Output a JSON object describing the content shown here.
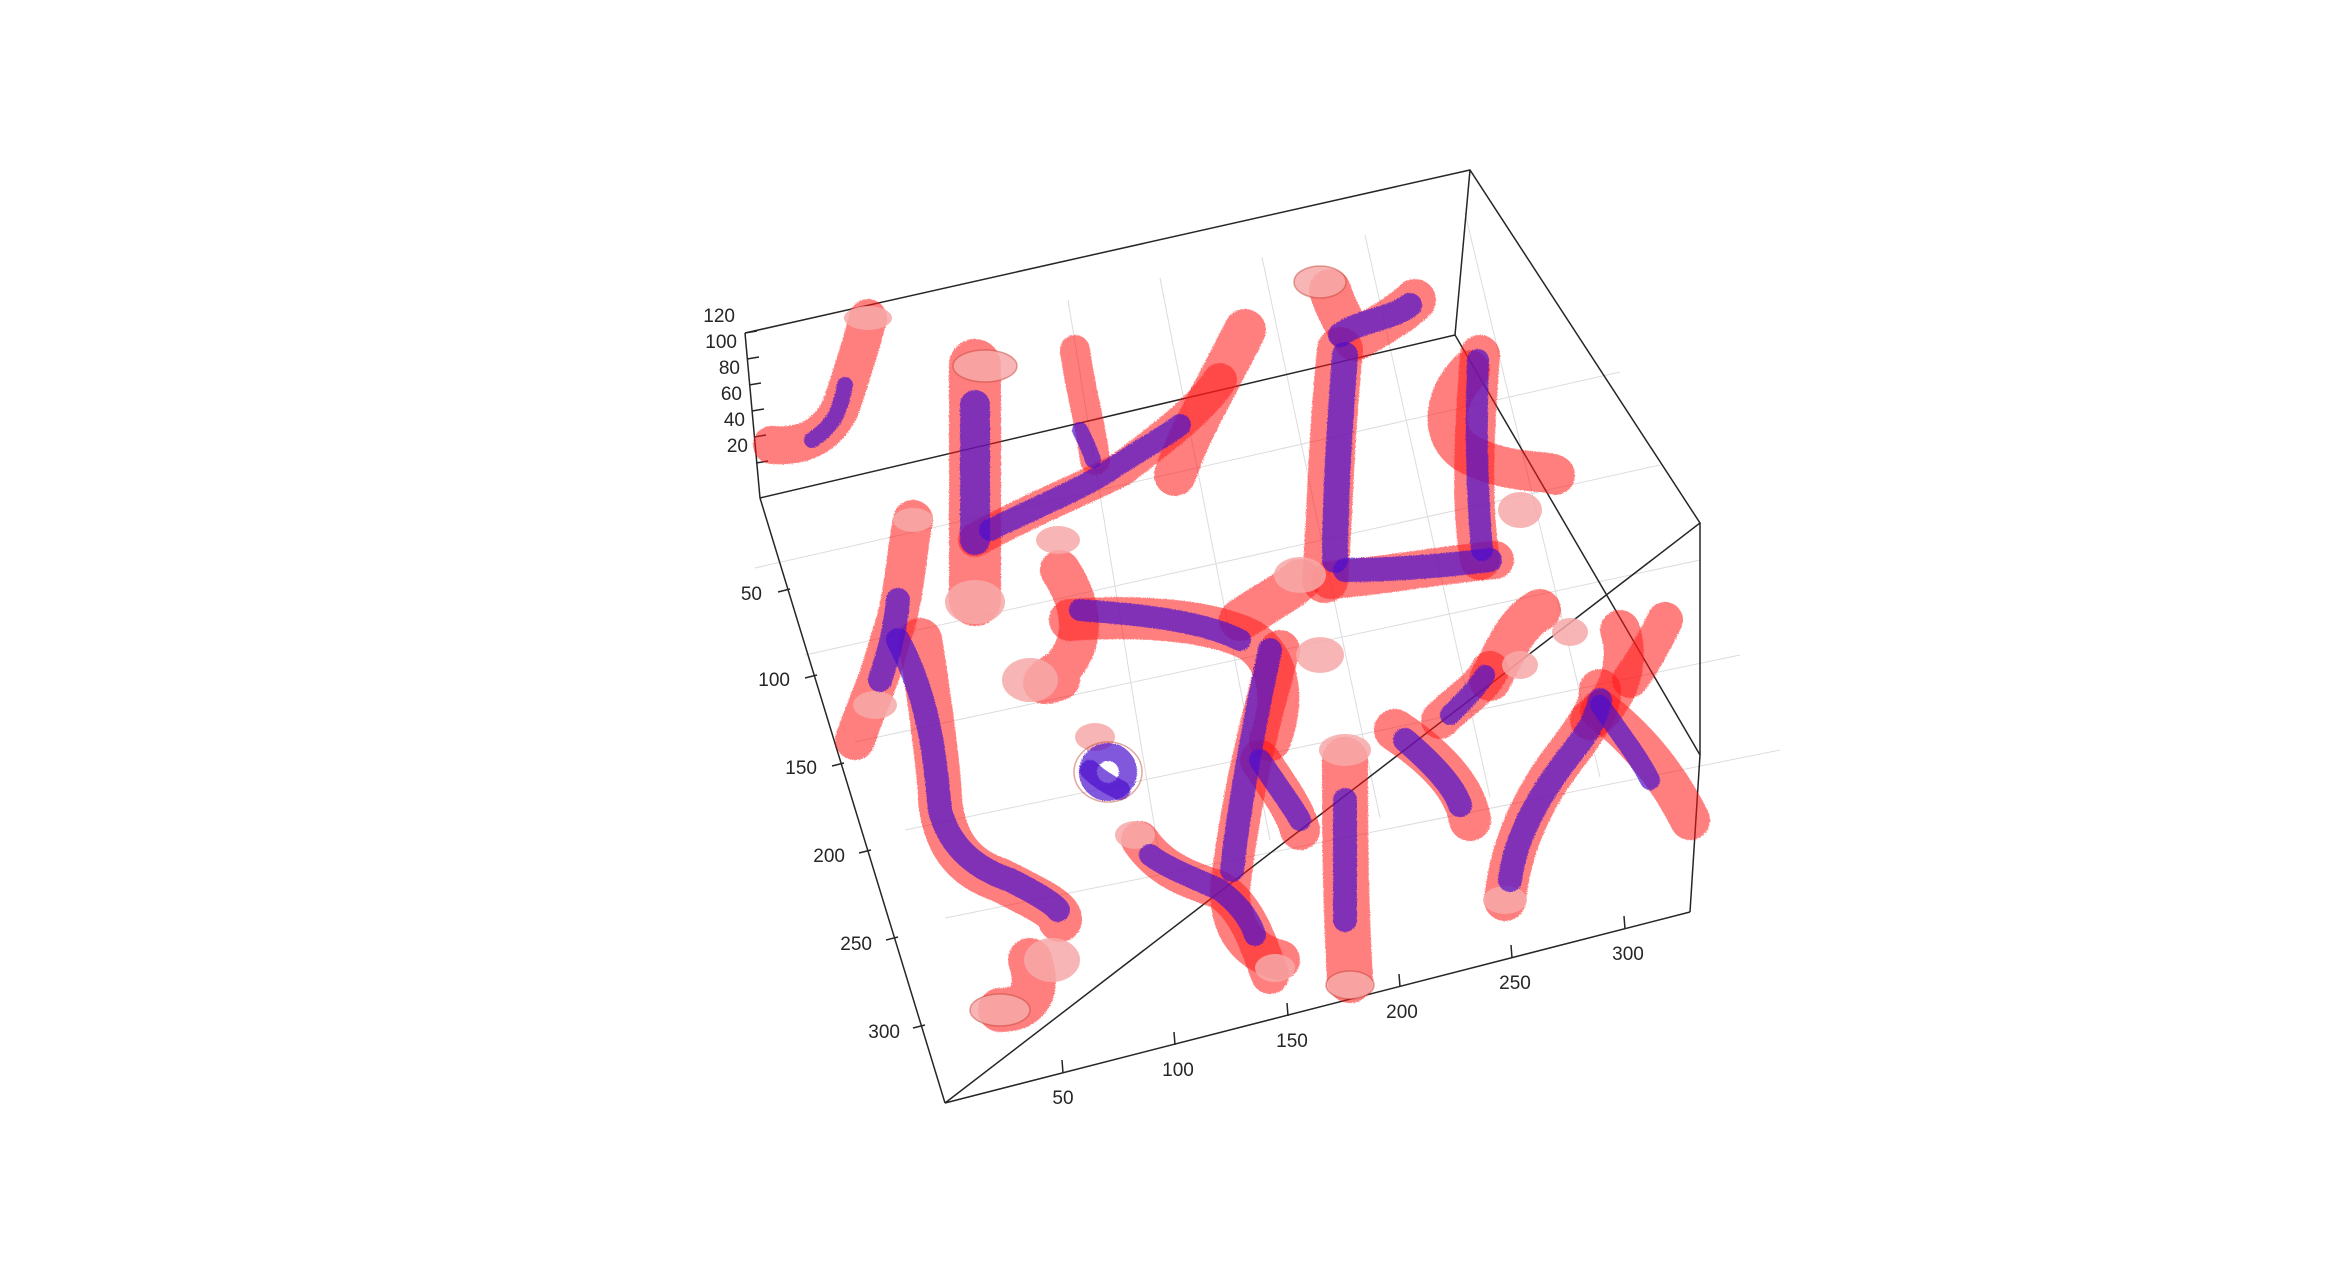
{
  "figure": {
    "axes": {
      "z_ticks": [
        "120",
        "100",
        "80",
        "60",
        "40",
        "20"
      ],
      "y_ticks": [
        "50",
        "100",
        "150",
        "200",
        "250",
        "300"
      ],
      "x_ticks": [
        "50",
        "100",
        "150",
        "200",
        "250",
        "300"
      ],
      "box": "on",
      "grid": "on"
    },
    "colors": {
      "outer_surface": "#ff1a1a",
      "inner_surface": "#4d0ecc",
      "background": "#ffffff",
      "axis_line": "#262626",
      "grid_line": "#dcdcdc"
    }
  }
}
